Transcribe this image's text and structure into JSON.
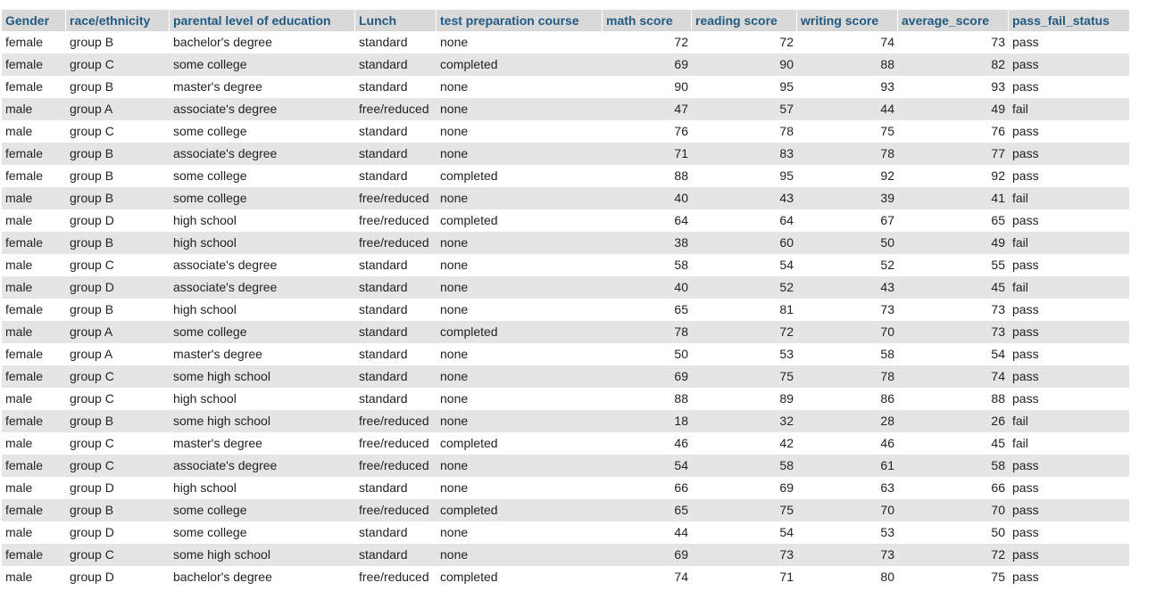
{
  "columns": [
    {
      "key": "gender",
      "label": "Gender",
      "numeric": false
    },
    {
      "key": "race",
      "label": "race/ethnicity",
      "numeric": false
    },
    {
      "key": "parent_edu",
      "label": "parental level of education",
      "numeric": false
    },
    {
      "key": "lunch",
      "label": "Lunch",
      "numeric": false
    },
    {
      "key": "prep",
      "label": "test preparation course",
      "numeric": false
    },
    {
      "key": "math",
      "label": "math score",
      "numeric": true
    },
    {
      "key": "reading",
      "label": "reading score",
      "numeric": true
    },
    {
      "key": "writing",
      "label": "writing score",
      "numeric": true
    },
    {
      "key": "avg",
      "label": "average_score",
      "numeric": true
    },
    {
      "key": "status",
      "label": "pass_fail_status",
      "numeric": false
    }
  ],
  "rows": [
    [
      "female",
      "group B",
      "bachelor's degree",
      "standard",
      "none",
      "72",
      "72",
      "74",
      "73",
      "pass"
    ],
    [
      "female",
      "group C",
      "some college",
      "standard",
      "completed",
      "69",
      "90",
      "88",
      "82",
      "pass"
    ],
    [
      "female",
      "group B",
      "master's degree",
      "standard",
      "none",
      "90",
      "95",
      "93",
      "93",
      "pass"
    ],
    [
      "male",
      "group A",
      "associate's degree",
      "free/reduced",
      "none",
      "47",
      "57",
      "44",
      "49",
      "fail"
    ],
    [
      "male",
      "group C",
      "some college",
      "standard",
      "none",
      "76",
      "78",
      "75",
      "76",
      "pass"
    ],
    [
      "female",
      "group B",
      "associate's degree",
      "standard",
      "none",
      "71",
      "83",
      "78",
      "77",
      "pass"
    ],
    [
      "female",
      "group B",
      "some college",
      "standard",
      "completed",
      "88",
      "95",
      "92",
      "92",
      "pass"
    ],
    [
      "male",
      "group B",
      "some college",
      "free/reduced",
      "none",
      "40",
      "43",
      "39",
      "41",
      "fail"
    ],
    [
      "male",
      "group D",
      "high school",
      "free/reduced",
      "completed",
      "64",
      "64",
      "67",
      "65",
      "pass"
    ],
    [
      "female",
      "group B",
      "high school",
      "free/reduced",
      "none",
      "38",
      "60",
      "50",
      "49",
      "fail"
    ],
    [
      "male",
      "group C",
      "associate's degree",
      "standard",
      "none",
      "58",
      "54",
      "52",
      "55",
      "pass"
    ],
    [
      "male",
      "group D",
      "associate's degree",
      "standard",
      "none",
      "40",
      "52",
      "43",
      "45",
      "fail"
    ],
    [
      "female",
      "group B",
      "high school",
      "standard",
      "none",
      "65",
      "81",
      "73",
      "73",
      "pass"
    ],
    [
      "male",
      "group A",
      "some college",
      "standard",
      "completed",
      "78",
      "72",
      "70",
      "73",
      "pass"
    ],
    [
      "female",
      "group A",
      "master's degree",
      "standard",
      "none",
      "50",
      "53",
      "58",
      "54",
      "pass"
    ],
    [
      "female",
      "group C",
      "some high school",
      "standard",
      "none",
      "69",
      "75",
      "78",
      "74",
      "pass"
    ],
    [
      "male",
      "group C",
      "high school",
      "standard",
      "none",
      "88",
      "89",
      "86",
      "88",
      "pass"
    ],
    [
      "female",
      "group B",
      "some high school",
      "free/reduced",
      "none",
      "18",
      "32",
      "28",
      "26",
      "fail"
    ],
    [
      "male",
      "group C",
      "master's degree",
      "free/reduced",
      "completed",
      "46",
      "42",
      "46",
      "45",
      "fail"
    ],
    [
      "female",
      "group C",
      "associate's degree",
      "free/reduced",
      "none",
      "54",
      "58",
      "61",
      "58",
      "pass"
    ],
    [
      "male",
      "group D",
      "high school",
      "standard",
      "none",
      "66",
      "69",
      "63",
      "66",
      "pass"
    ],
    [
      "female",
      "group B",
      "some college",
      "free/reduced",
      "completed",
      "65",
      "75",
      "70",
      "70",
      "pass"
    ],
    [
      "male",
      "group D",
      "some college",
      "standard",
      "none",
      "44",
      "54",
      "53",
      "50",
      "pass"
    ],
    [
      "female",
      "group C",
      "some high school",
      "standard",
      "none",
      "69",
      "73",
      "73",
      "72",
      "pass"
    ],
    [
      "male",
      "group D",
      "bachelor's degree",
      "free/reduced",
      "completed",
      "74",
      "71",
      "80",
      "75",
      "pass"
    ]
  ],
  "colors": {
    "header_bg": "#d9d9d9",
    "header_text": "#235a81",
    "row_odd_bg": "#ffffff",
    "row_even_bg": "#e5e5e5",
    "cell_text": "#222222"
  }
}
